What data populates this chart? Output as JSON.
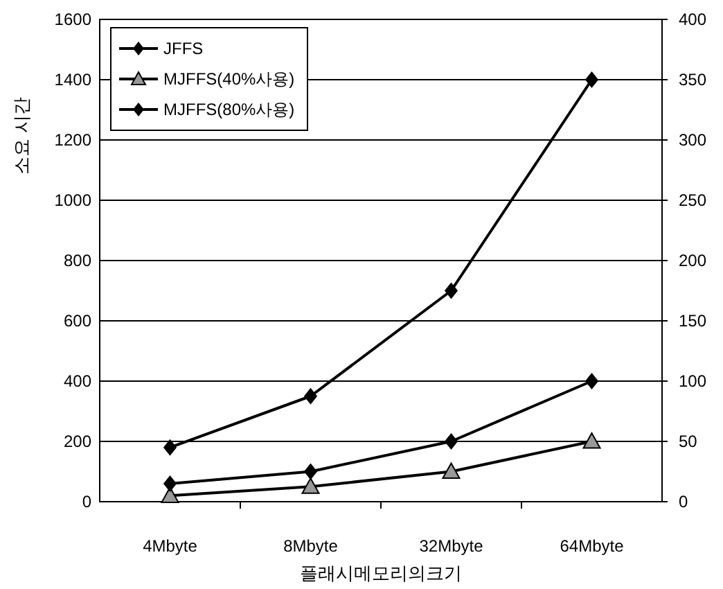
{
  "chart_data": {
    "type": "line",
    "xlabel": "플래시메모리의크기",
    "ylabel": "소요 시간",
    "categories": [
      "4Mbyte",
      "8Mbyte",
      "32Mbyte",
      "64Mbyte"
    ],
    "series": [
      {
        "name": "JFFS",
        "color": "#000000",
        "marker": "diamond",
        "values": [
          180,
          350,
          700,
          1400
        ]
      },
      {
        "name": "MJFFS(40%사용)",
        "color": "#000000",
        "marker": "triangle",
        "values": [
          20,
          50,
          100,
          200
        ]
      },
      {
        "name": "MJFFS(80%사용)",
        "color": "#000000",
        "marker": "diamond",
        "values": [
          60,
          100,
          200,
          400
        ]
      }
    ],
    "ylim": [
      0,
      1600
    ],
    "yticks": [
      0,
      200,
      400,
      600,
      800,
      1000,
      1200,
      1400,
      1600
    ],
    "y2lim": [
      0,
      400
    ],
    "y2ticks": [
      0,
      50,
      100,
      150,
      200,
      250,
      300,
      350,
      400
    ],
    "grid": "y",
    "legend": "top left"
  }
}
